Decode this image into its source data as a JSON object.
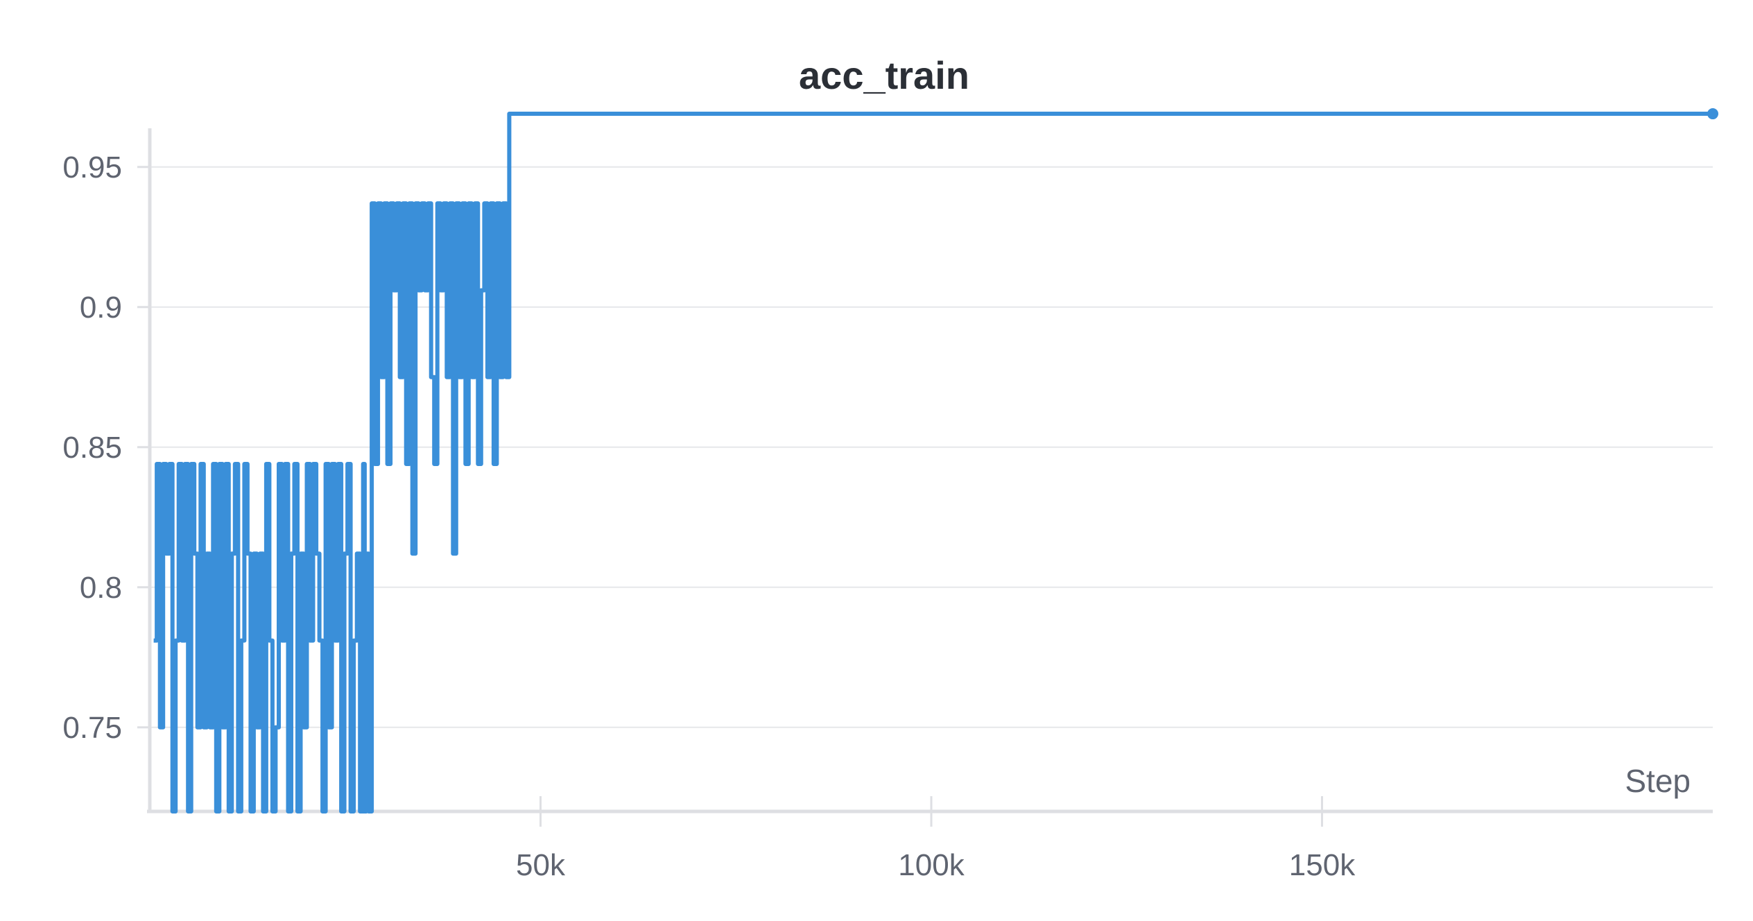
{
  "chart_data": {
    "type": "line",
    "title": "acc_train",
    "xlabel": "Step",
    "ylabel": "",
    "xlim": [
      0,
      200000
    ],
    "ylim": [
      0.72,
      0.97
    ],
    "x_ticks": [
      {
        "value": 50000,
        "label": "50k"
      },
      {
        "value": 100000,
        "label": "100k"
      },
      {
        "value": 150000,
        "label": "150k"
      }
    ],
    "y_ticks": [
      {
        "value": 0.75,
        "label": "0.75"
      },
      {
        "value": 0.8,
        "label": "0.8"
      },
      {
        "value": 0.85,
        "label": "0.85"
      },
      {
        "value": 0.9,
        "label": "0.9"
      },
      {
        "value": 0.95,
        "label": "0.95"
      }
    ],
    "grid": true,
    "legend": "none",
    "color": "#3a8fd9",
    "series": [
      {
        "values_xy": [
          [
            500,
            0.781
          ],
          [
            900,
            0.844
          ],
          [
            1300,
            0.75
          ],
          [
            1700,
            0.844
          ],
          [
            2100,
            0.812
          ],
          [
            2500,
            0.844
          ],
          [
            2900,
            0.72
          ],
          [
            3300,
            0.781
          ],
          [
            3700,
            0.844
          ],
          [
            4100,
            0.781
          ],
          [
            4500,
            0.844
          ],
          [
            4900,
            0.72
          ],
          [
            5300,
            0.844
          ],
          [
            5700,
            0.812
          ],
          [
            6100,
            0.75
          ],
          [
            6500,
            0.844
          ],
          [
            6900,
            0.75
          ],
          [
            7300,
            0.812
          ],
          [
            7700,
            0.75
          ],
          [
            8100,
            0.844
          ],
          [
            8500,
            0.72
          ],
          [
            8900,
            0.844
          ],
          [
            9300,
            0.75
          ],
          [
            9700,
            0.844
          ],
          [
            10100,
            0.72
          ],
          [
            10500,
            0.812
          ],
          [
            10900,
            0.844
          ],
          [
            11300,
            0.72
          ],
          [
            11700,
            0.781
          ],
          [
            12100,
            0.844
          ],
          [
            12500,
            0.812
          ],
          [
            12900,
            0.72
          ],
          [
            13300,
            0.812
          ],
          [
            13700,
            0.75
          ],
          [
            14100,
            0.812
          ],
          [
            14500,
            0.72
          ],
          [
            14900,
            0.844
          ],
          [
            15300,
            0.781
          ],
          [
            15700,
            0.72
          ],
          [
            16100,
            0.75
          ],
          [
            16500,
            0.844
          ],
          [
            16900,
            0.781
          ],
          [
            17300,
            0.844
          ],
          [
            17700,
            0.72
          ],
          [
            18100,
            0.812
          ],
          [
            18500,
            0.844
          ],
          [
            18900,
            0.72
          ],
          [
            19300,
            0.812
          ],
          [
            19700,
            0.75
          ],
          [
            20100,
            0.844
          ],
          [
            20500,
            0.781
          ],
          [
            20900,
            0.844
          ],
          [
            21300,
            0.812
          ],
          [
            21700,
            0.781
          ],
          [
            22100,
            0.72
          ],
          [
            22500,
            0.844
          ],
          [
            22900,
            0.75
          ],
          [
            23300,
            0.844
          ],
          [
            23700,
            0.781
          ],
          [
            24100,
            0.844
          ],
          [
            24500,
            0.72
          ],
          [
            24900,
            0.812
          ],
          [
            25300,
            0.844
          ],
          [
            25700,
            0.72
          ],
          [
            26100,
            0.781
          ],
          [
            26500,
            0.812
          ],
          [
            26900,
            0.72
          ],
          [
            27300,
            0.844
          ],
          [
            27500,
            0.72
          ],
          [
            27700,
            0.812
          ],
          [
            28000,
            0.72
          ],
          [
            28400,
            0.937
          ],
          [
            28800,
            0.844
          ],
          [
            29200,
            0.937
          ],
          [
            29600,
            0.875
          ],
          [
            30000,
            0.937
          ],
          [
            30400,
            0.844
          ],
          [
            30800,
            0.937
          ],
          [
            31200,
            0.906
          ],
          [
            31600,
            0.937
          ],
          [
            32000,
            0.875
          ],
          [
            32400,
            0.937
          ],
          [
            32800,
            0.844
          ],
          [
            33200,
            0.937
          ],
          [
            33600,
            0.812
          ],
          [
            34000,
            0.937
          ],
          [
            34400,
            0.906
          ],
          [
            34800,
            0.937
          ],
          [
            35200,
            0.906
          ],
          [
            35600,
            0.937
          ],
          [
            36000,
            0.875
          ],
          [
            36400,
            0.844
          ],
          [
            36800,
            0.937
          ],
          [
            37200,
            0.906
          ],
          [
            37600,
            0.937
          ],
          [
            38000,
            0.875
          ],
          [
            38400,
            0.937
          ],
          [
            38800,
            0.812
          ],
          [
            39200,
            0.937
          ],
          [
            39600,
            0.875
          ],
          [
            40000,
            0.937
          ],
          [
            40400,
            0.844
          ],
          [
            40800,
            0.937
          ],
          [
            41200,
            0.875
          ],
          [
            41600,
            0.937
          ],
          [
            42000,
            0.844
          ],
          [
            42400,
            0.906
          ],
          [
            42800,
            0.937
          ],
          [
            43200,
            0.875
          ],
          [
            43600,
            0.937
          ],
          [
            44000,
            0.844
          ],
          [
            44400,
            0.937
          ],
          [
            44800,
            0.875
          ],
          [
            45200,
            0.937
          ],
          [
            45600,
            0.875
          ],
          [
            46000,
            0.969
          ],
          [
            200000,
            0.969
          ]
        ]
      }
    ]
  }
}
